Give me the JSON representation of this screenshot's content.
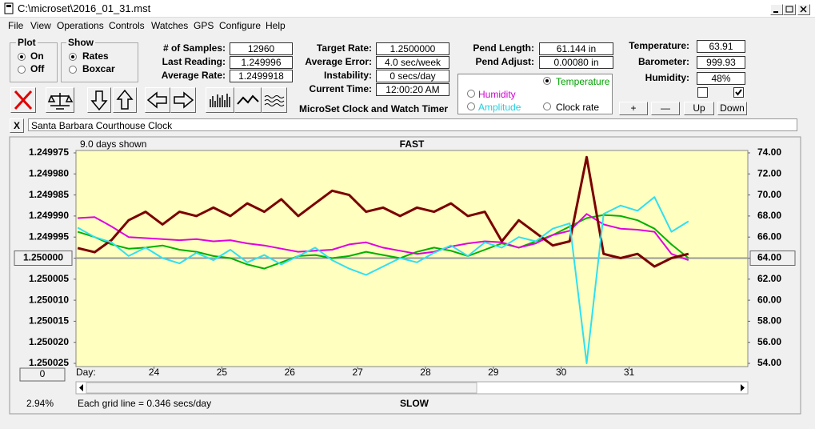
{
  "window": {
    "title": "C:\\microset\\2016_01_31.mst"
  },
  "menu": [
    "File",
    "View",
    "Operations",
    "Controls",
    "Watches",
    "GPS",
    "Configure",
    "Help"
  ],
  "plot_group": {
    "title": "Plot",
    "options": [
      "On",
      "Off"
    ]
  },
  "show_group": {
    "title": "Show",
    "options": [
      "Rates",
      "Boxcar"
    ]
  },
  "readings": [
    {
      "label": "# of Samples:",
      "value": "12960"
    },
    {
      "label": "Last Reading:",
      "value": "1.249996"
    },
    {
      "label": "Average Rate:",
      "value": "1.2499918"
    }
  ],
  "rates": [
    {
      "label": "Target Rate:",
      "value": "1.2500000"
    },
    {
      "label": "Average Error:",
      "value": "4.0 sec/week"
    },
    {
      "label": "Instability:",
      "value": "0 secs/day"
    },
    {
      "label": "Current Time:",
      "value": "12:00:20 AM"
    }
  ],
  "pendulum": [
    {
      "label": "Pend Length:",
      "value": "61.144 in"
    },
    {
      "label": "Pend Adjust:",
      "value": "0.00080 in"
    }
  ],
  "environment": [
    {
      "label": "Temperature:",
      "value": "63.91"
    },
    {
      "label": "Barometer:",
      "value": "999.93"
    },
    {
      "label": "Humidity:",
      "value": "48%"
    }
  ],
  "app_label": "MicroSet Clock and Watch Timer",
  "adjust_buttons": [
    "+",
    "—",
    "Up",
    "Down"
  ],
  "close_button": "X",
  "clock_name": "Santa Barbara Courthouse Clock",
  "chart_data": {
    "type": "line",
    "top_label": "FAST",
    "bottom_label": "SLOW",
    "days_shown": "9.0 days shown",
    "x_label": "Day:",
    "grid_note": "Each grid line = 0.346 secs/day",
    "zoom": "2.94%",
    "offset_button": "0",
    "xlim": [
      22.85,
      32.75
    ],
    "xticks": [
      24,
      25,
      26,
      27,
      28,
      29,
      30,
      31
    ],
    "ylim": [
      1.250025,
      1.249975
    ],
    "yticks": [
      {
        "value": 1.249975,
        "label": "1.249975"
      },
      {
        "value": 1.24998,
        "label": "1.249980"
      },
      {
        "value": 1.249985,
        "label": "1.249985"
      },
      {
        "value": 1.24999,
        "label": "1.249990"
      },
      {
        "value": 1.249995,
        "label": "1.249995"
      },
      {
        "value": 1.25,
        "label": "1.250000"
      },
      {
        "value": 1.250005,
        "label": "1.250005"
      },
      {
        "value": 1.25001,
        "label": "1.250010"
      },
      {
        "value": 1.250015,
        "label": "1.250015"
      },
      {
        "value": 1.25002,
        "label": "1.250020"
      },
      {
        "value": 1.250025,
        "label": "1.250025"
      }
    ],
    "y2lim": [
      54,
      74
    ],
    "y2ticks": [
      {
        "value": 74,
        "label": "74.00"
      },
      {
        "value": 72,
        "label": "72.00"
      },
      {
        "value": 70,
        "label": "70.00"
      },
      {
        "value": 68,
        "label": "68.00"
      },
      {
        "value": 66,
        "label": "66.00"
      },
      {
        "value": 64,
        "label": "64.00"
      },
      {
        "value": 62,
        "label": "62.00"
      },
      {
        "value": 60,
        "label": "60.00"
      },
      {
        "value": 58,
        "label": "58.00"
      },
      {
        "value": 56,
        "label": "56.00"
      },
      {
        "value": 54,
        "label": "54.00"
      }
    ],
    "x": [
      22.875,
      23.125,
      23.375,
      23.625,
      23.875,
      24.125,
      24.375,
      24.625,
      24.875,
      25.125,
      25.375,
      25.625,
      25.875,
      26.125,
      26.375,
      26.625,
      26.875,
      27.125,
      27.375,
      27.625,
      27.875,
      28.125,
      28.375,
      28.625,
      28.875,
      29.125,
      29.375,
      29.625,
      29.875,
      30.125,
      30.375,
      30.625,
      30.875,
      31.125,
      31.375,
      31.625,
      31.875
    ],
    "series": [
      {
        "name": "Temperature",
        "color": "#00b000",
        "axis": "y2",
        "values": [
          66.5,
          66.0,
          65.3,
          64.9,
          65.0,
          65.2,
          64.8,
          64.6,
          64.2,
          64.0,
          63.4,
          63.0,
          63.6,
          64.2,
          64.3,
          64.0,
          64.2,
          64.6,
          64.3,
          64.0,
          64.6,
          65.0,
          64.7,
          64.2,
          64.8,
          65.4,
          65.0,
          65.6,
          66.2,
          67.0,
          67.8,
          68.1,
          68.0,
          67.6,
          66.8,
          65.3,
          64.0
        ]
      },
      {
        "name": "Humidity",
        "color": "#e000e0",
        "axis": "y2",
        "values": [
          67.8,
          67.9,
          67.0,
          66.0,
          65.9,
          65.8,
          65.7,
          65.8,
          65.6,
          65.7,
          65.4,
          65.2,
          64.9,
          64.6,
          64.7,
          64.8,
          65.3,
          65.5,
          65.0,
          64.7,
          64.4,
          64.6,
          65.1,
          65.4,
          65.6,
          65.5,
          65.0,
          65.4,
          66.2,
          66.6,
          68.2,
          67.2,
          66.8,
          66.7,
          66.5,
          64.4,
          63.8
        ]
      },
      {
        "name": "Clock rate",
        "color": "#7a0000",
        "values": [
          1.2499976,
          1.2499986,
          1.2499957,
          1.249991,
          1.249989,
          1.249992,
          1.249989,
          1.24999,
          1.249988,
          1.24999,
          1.249987,
          1.249989,
          1.249986,
          1.24999,
          1.249987,
          1.249984,
          1.249985,
          1.249989,
          1.249988,
          1.24999,
          1.249988,
          1.249989,
          1.249987,
          1.24999,
          1.249989,
          1.249996,
          1.249991,
          1.249994,
          1.249997,
          1.249996,
          1.249976,
          1.249999,
          1.25,
          1.249999,
          1.250002,
          1.25,
          1.249999
        ]
      },
      {
        "name": "Amplitude",
        "color": "#30e0f0",
        "axis": "y2",
        "values": [
          66.9,
          66.0,
          65.5,
          64.2,
          65.0,
          64.0,
          63.5,
          64.5,
          63.8,
          64.8,
          63.6,
          64.3,
          63.4,
          64.2,
          65.0,
          63.8,
          63.0,
          62.4,
          63.2,
          64.0,
          63.6,
          64.5,
          65.2,
          64.2,
          65.5,
          65.0,
          66.0,
          65.6,
          66.8,
          67.3,
          54.0,
          68.2,
          69.0,
          68.5,
          69.8,
          66.5,
          67.5
        ]
      }
    ]
  }
}
